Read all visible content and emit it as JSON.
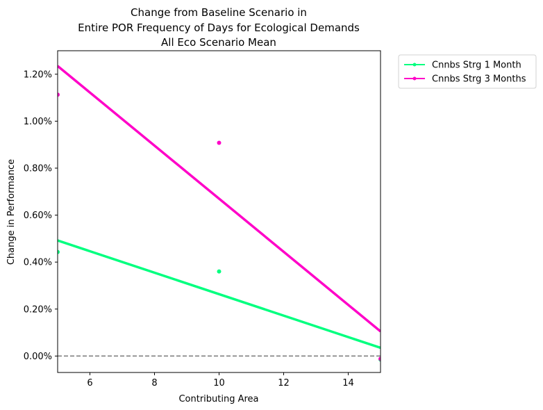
{
  "chart_data": {
    "type": "scatter",
    "title_lines": [
      "Change from Baseline Scenario in",
      "Entire POR Frequency of Days for Ecological Demands",
      "All Eco Scenario Mean"
    ],
    "xlabel": "Contributing Area",
    "ylabel": "Change in Performance",
    "xlim": [
      5,
      15
    ],
    "ylim": [
      -0.0007,
      0.013
    ],
    "x_ticks": [
      6,
      8,
      10,
      12,
      14
    ],
    "y_ticks": [
      0.0,
      0.002,
      0.004,
      0.006,
      0.008,
      0.01,
      0.012
    ],
    "y_tick_labels": [
      "0.00%",
      "0.20%",
      "0.40%",
      "0.60%",
      "0.80%",
      "1.00%",
      "1.20%"
    ],
    "reference_line": {
      "y": 0.0,
      "style": "dashed",
      "color": "#808080"
    },
    "legend_position": "outside-top-right",
    "series": [
      {
        "name": "Cnnbs Strg 1 Month",
        "color": "#00ff7f",
        "points": [
          {
            "x": 5,
            "y": 0.00443
          },
          {
            "x": 10,
            "y": 0.0036
          },
          {
            "x": 15,
            "y": -0.00015
          }
        ],
        "trend": [
          {
            "x": 5,
            "y": 0.00492
          },
          {
            "x": 15,
            "y": 0.00035
          }
        ]
      },
      {
        "name": "Cnnbs Strg 3 Months",
        "color": "#ff00c8",
        "points": [
          {
            "x": 5,
            "y": 0.01113
          },
          {
            "x": 10,
            "y": 0.00908
          },
          {
            "x": 15,
            "y": -0.00012
          }
        ],
        "trend": [
          {
            "x": 5,
            "y": 0.01235
          },
          {
            "x": 15,
            "y": 0.00105
          }
        ]
      }
    ]
  }
}
